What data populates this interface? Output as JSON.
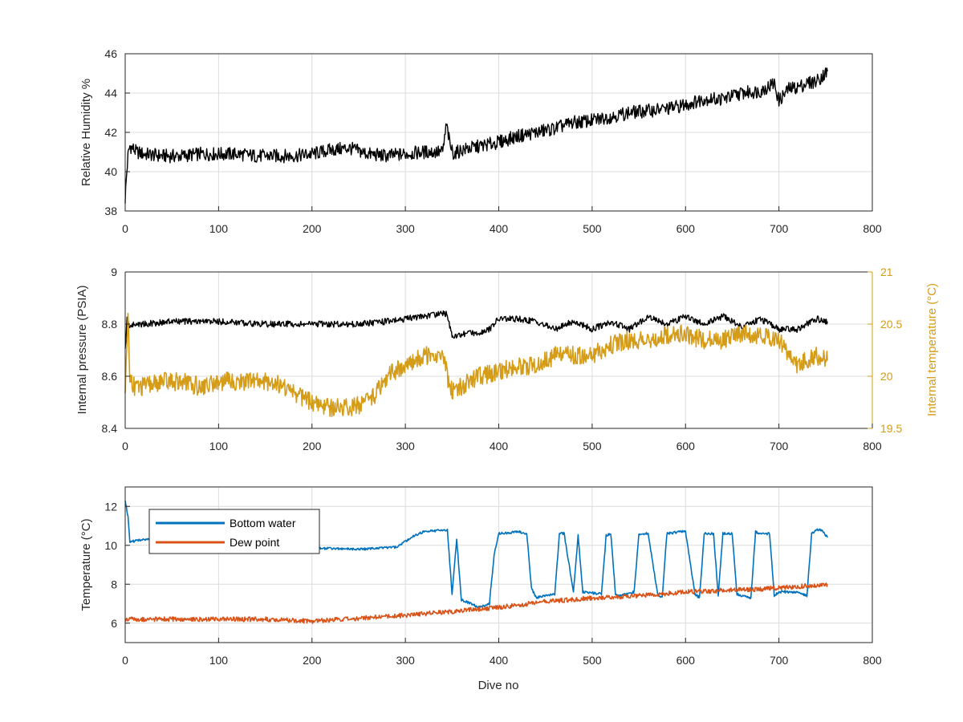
{
  "chart_data": [
    {
      "type": "line",
      "xlabel": "",
      "ylabel": "Relative Humidity %",
      "xlim": [
        0,
        800
      ],
      "ylim": [
        38,
        46
      ],
      "xticks": [
        "0",
        "100",
        "200",
        "300",
        "400",
        "500",
        "600",
        "700",
        "800"
      ],
      "yticks": [
        "38",
        "40",
        "42",
        "44",
        "46"
      ],
      "grid": true,
      "series": [
        {
          "color": "#000000",
          "x": [
            0,
            1,
            3,
            5,
            8,
            12,
            20,
            40,
            60,
            80,
            100,
            120,
            140,
            160,
            180,
            200,
            220,
            240,
            260,
            280,
            300,
            320,
            340,
            344,
            348,
            352,
            360,
            380,
            400,
            420,
            440,
            460,
            480,
            500,
            520,
            540,
            560,
            580,
            600,
            620,
            640,
            660,
            680,
            695,
            700,
            710,
            720,
            730,
            740,
            752
          ],
          "y": [
            38.6,
            39.5,
            40.8,
            41.3,
            41.2,
            41.0,
            40.9,
            40.8,
            40.8,
            40.9,
            40.9,
            40.9,
            40.8,
            40.8,
            40.8,
            40.9,
            41.1,
            41.2,
            40.9,
            40.8,
            40.9,
            41.0,
            41.0,
            42.4,
            41.3,
            40.9,
            41.1,
            41.3,
            41.5,
            41.8,
            42.0,
            42.2,
            42.5,
            42.6,
            42.8,
            43.0,
            43.1,
            43.2,
            43.4,
            43.7,
            43.7,
            44.0,
            44.1,
            44.5,
            43.6,
            44.2,
            44.3,
            44.5,
            44.6,
            45.1
          ]
        }
      ]
    },
    {
      "type": "line",
      "xlabel": "",
      "ylabel": "Internal pressure (PSIA)",
      "ylabel_right": "Internal temperature (°C)",
      "xlim": [
        0,
        800
      ],
      "ylim": [
        8.4,
        9.0
      ],
      "ylim_right": [
        19.5,
        21.0
      ],
      "xticks": [
        "0",
        "100",
        "200",
        "300",
        "400",
        "500",
        "600",
        "700",
        "800"
      ],
      "yticks": [
        "8.4",
        "8.6",
        "8.8",
        "9"
      ],
      "yticks_right": [
        "19.5",
        "20",
        "20.5",
        "21"
      ],
      "grid": true,
      "series": [
        {
          "axis": "left",
          "color": "#000000",
          "x": [
            0,
            2,
            5,
            10,
            20,
            50,
            100,
            150,
            200,
            250,
            280,
            300,
            320,
            340,
            345,
            350,
            360,
            380,
            390,
            400,
            420,
            440,
            460,
            480,
            500,
            520,
            540,
            560,
            580,
            600,
            620,
            640,
            660,
            680,
            700,
            720,
            740,
            752
          ],
          "y": [
            8.7,
            8.82,
            8.79,
            8.8,
            8.8,
            8.81,
            8.81,
            8.8,
            8.8,
            8.8,
            8.81,
            8.82,
            8.83,
            8.84,
            8.84,
            8.75,
            8.76,
            8.77,
            8.78,
            8.82,
            8.82,
            8.81,
            8.78,
            8.81,
            8.78,
            8.81,
            8.78,
            8.83,
            8.8,
            8.83,
            8.8,
            8.83,
            8.79,
            8.82,
            8.78,
            8.78,
            8.82,
            8.81
          ]
        },
        {
          "axis": "right",
          "color": "#D59C18",
          "x": [
            0,
            3,
            5,
            10,
            20,
            40,
            60,
            80,
            100,
            120,
            140,
            160,
            180,
            200,
            220,
            240,
            260,
            270,
            280,
            300,
            320,
            340,
            345,
            350,
            360,
            380,
            400,
            420,
            440,
            460,
            480,
            500,
            520,
            540,
            560,
            580,
            600,
            620,
            640,
            660,
            680,
            700,
            720,
            740,
            752
          ],
          "y": [
            19.8,
            20.6,
            20.0,
            19.9,
            19.9,
            19.95,
            19.95,
            19.9,
            19.95,
            19.95,
            19.95,
            19.95,
            19.85,
            19.75,
            19.7,
            19.7,
            19.75,
            19.85,
            20.0,
            20.1,
            20.2,
            20.2,
            20.0,
            19.85,
            19.9,
            20.0,
            20.05,
            20.1,
            20.1,
            20.2,
            20.2,
            20.2,
            20.3,
            20.35,
            20.35,
            20.4,
            20.4,
            20.35,
            20.35,
            20.4,
            20.4,
            20.35,
            20.1,
            20.2,
            20.15
          ]
        }
      ]
    },
    {
      "type": "line",
      "xlabel": "Dive no",
      "ylabel": "Temperature (°C)",
      "xlim": [
        0,
        800
      ],
      "ylim": [
        5,
        13
      ],
      "xticks": [
        "0",
        "100",
        "200",
        "300",
        "400",
        "500",
        "600",
        "700",
        "800"
      ],
      "yticks": [
        "6",
        "8",
        "10",
        "12"
      ],
      "grid": true,
      "legend_position": "top-left",
      "series": [
        {
          "name": "Bottom water",
          "color": "#0072BD",
          "x": [
            0,
            3,
            5,
            8,
            20,
            50,
            100,
            150,
            200,
            250,
            290,
            300,
            310,
            320,
            345,
            350,
            355,
            360,
            380,
            390,
            395,
            400,
            420,
            430,
            435,
            440,
            460,
            465,
            470,
            480,
            485,
            490,
            510,
            515,
            520,
            525,
            530,
            545,
            550,
            560,
            570,
            575,
            580,
            595,
            600,
            610,
            615,
            620,
            630,
            635,
            640,
            650,
            655,
            660,
            670,
            675,
            680,
            690,
            695,
            700,
            720,
            730,
            735,
            740,
            745,
            752
          ],
          "y": [
            12.3,
            11.5,
            10.2,
            10.2,
            10.3,
            10.2,
            10.1,
            9.9,
            9.85,
            9.8,
            9.9,
            10.2,
            10.5,
            10.7,
            10.8,
            7.5,
            10.3,
            7.2,
            6.8,
            7.0,
            9.5,
            10.6,
            10.7,
            10.6,
            7.8,
            7.3,
            7.5,
            10.6,
            10.6,
            7.6,
            10.5,
            7.6,
            7.5,
            10.5,
            10.6,
            7.5,
            7.4,
            7.6,
            10.6,
            10.6,
            7.5,
            7.3,
            10.6,
            10.7,
            10.7,
            7.5,
            7.3,
            10.6,
            10.6,
            7.4,
            10.6,
            10.6,
            7.5,
            7.4,
            7.3,
            10.7,
            10.6,
            10.6,
            7.4,
            7.6,
            7.6,
            7.4,
            10.6,
            10.8,
            10.8,
            10.4
          ]
        },
        {
          "name": "Dew point",
          "color": "#D95319",
          "x": [
            0,
            20,
            50,
            100,
            150,
            200,
            250,
            300,
            350,
            400,
            450,
            500,
            550,
            600,
            650,
            700,
            752
          ],
          "y": [
            6.2,
            6.2,
            6.2,
            6.2,
            6.2,
            6.1,
            6.25,
            6.4,
            6.6,
            6.8,
            7.1,
            7.3,
            7.4,
            7.6,
            7.7,
            7.8,
            8.0
          ]
        }
      ]
    }
  ]
}
